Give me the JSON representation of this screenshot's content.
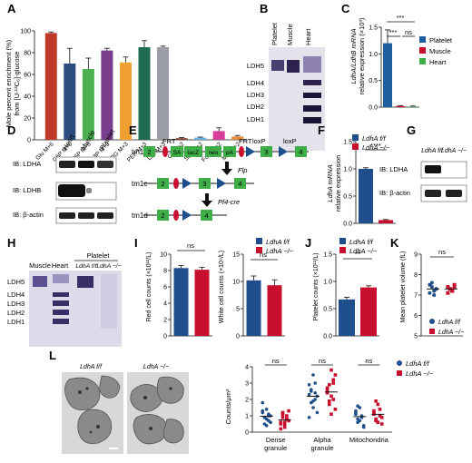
{
  "panels": {
    "A": {
      "letter": "A",
      "ylabel_1": "Mole percent enrichment (%)",
      "ylabel_2": "from [U-¹³C₆]-glucose",
      "chart_data": {
        "type": "bar",
        "categories": [
          "Glu M+6",
          "G6P M+6",
          "F6P M+6",
          "GA3P M+3",
          "3PG M+3",
          "PEP M+3",
          "Lac M+3",
          "Cit M+2",
          "Suc M+2",
          "Fum M+2",
          "Mal M+2"
        ],
        "values": [
          98,
          70,
          65,
          82,
          71,
          85,
          85,
          1.5,
          2,
          8,
          3
        ],
        "errors": [
          1,
          14,
          10,
          2,
          5,
          6,
          1,
          0.5,
          0.5,
          3,
          1
        ],
        "colors": [
          "#c0392b",
          "#2c4e7e",
          "#4caf50",
          "#7a3e8e",
          "#f0a030",
          "#1f6b4f",
          "#9a9ca6",
          "#7a3e2a",
          "#6ab0e0",
          "#d63e9a",
          "#e08a3a"
        ],
        "yticks": [
          "0",
          "20",
          "40",
          "60",
          "80",
          "100"
        ],
        "ylim": [
          0,
          100
        ]
      }
    },
    "B": {
      "letter": "B",
      "lanes": [
        "Platelet",
        "Muscle",
        "Heart"
      ],
      "bands": [
        "LDH5",
        "LDH4",
        "LDH3",
        "LDH2",
        "LDH1"
      ]
    },
    "C": {
      "letter": "C",
      "ylabel_1": "LdhA/LdhB mRNA",
      "ylabel_2": "relative expression (×10³)",
      "sig_1": "***",
      "sig_2": "***",
      "sig_3": "ns",
      "legend": [
        "Platelet",
        "Muscle",
        "Heart"
      ],
      "legend_colors": [
        "#1f5f9e",
        "#c8102e",
        "#3fae49"
      ],
      "chart_data": {
        "type": "bar",
        "categories": [
          "Platelet",
          "Muscle",
          "Heart"
        ],
        "values": [
          1.2,
          0.02,
          0.01
        ],
        "errors": [
          0.25,
          0.01,
          0.01
        ],
        "yticks": [
          "0.0",
          "0.5",
          "1.0",
          "1.5"
        ],
        "ylim": [
          0,
          1.5
        ]
      }
    },
    "D": {
      "letter": "D",
      "lanes": [
        "Heart",
        "Muscle",
        "Platelet"
      ],
      "rows": [
        "IB: LDHA",
        "IB: LDHB",
        "IB: β-actin"
      ]
    },
    "E": {
      "letter": "E",
      "alleles": [
        "tm1a",
        "tm1c",
        "tm1d"
      ],
      "labels": {
        "frt": "FRT",
        "frt2": "FRT",
        "loxp1": "loxP",
        "loxp2": "loxP",
        "sa": "SA",
        "lacz": "lacZ",
        "neo": "neo",
        "pa": "pA",
        "flp": "Flp",
        "pf4": "Pf4-cre"
      },
      "exons_a": [
        "2",
        "3",
        "4"
      ],
      "exons_c": [
        "2",
        "3",
        "4"
      ],
      "exons_d": [
        "2",
        "4"
      ]
    },
    "F": {
      "letter": "F",
      "ylabel_1": "LdhA mRNA",
      "ylabel_2": "relative expression",
      "sig": "****",
      "legend": [
        "LdhA f/f",
        "LdhA −/−"
      ],
      "chart_data": {
        "type": "bar",
        "categories": [
          "LdhA f/f",
          "LdhA −/−"
        ],
        "values": [
          1.0,
          0.06
        ],
        "errors": [
          0.02,
          0.01
        ],
        "yticks": [
          "0.0",
          "0.5",
          "1.0",
          "1.5"
        ],
        "ylim": [
          0,
          1.5
        ]
      }
    },
    "G": {
      "letter": "G",
      "lanes": [
        "LdhA f/f",
        "LdhA −/−"
      ],
      "rows": [
        "IB: LDHA",
        "IB: β-actin"
      ]
    },
    "H": {
      "letter": "H",
      "lanes": [
        "Muscle",
        "Heart",
        "LdhA f/f",
        "LdhA −/−"
      ],
      "group": "Platelet",
      "bands": [
        "LDH5",
        "LDH4",
        "LDH3",
        "LDH2",
        "LDH1"
      ]
    },
    "I": {
      "letter": "I",
      "legend": [
        "LdhA f/f",
        "LdhA −/−"
      ],
      "chart_data": [
        {
          "type": "bar",
          "ylabel": "Red cell counts (×10¹²/L)",
          "categories": [
            "LdhA f/f",
            "LdhA −/−"
          ],
          "values": [
            8.3,
            8.1
          ],
          "errors": [
            0.3,
            0.3
          ],
          "yticks": [
            "0",
            "2",
            "4",
            "6",
            "8",
            "10"
          ],
          "ylim": [
            0,
            10
          ],
          "sig": "ns"
        },
        {
          "type": "bar",
          "ylabel": "White cell counts (×10⁹/L)",
          "categories": [
            "LdhA f/f",
            "LdhA −/−"
          ],
          "values": [
            10.2,
            9.3
          ],
          "errors": [
            0.8,
            1.0
          ],
          "yticks": [
            "0",
            "5",
            "10",
            "15"
          ],
          "ylim": [
            0,
            15
          ],
          "sig": "ns"
        }
      ]
    },
    "J": {
      "letter": "J",
      "ylabel": "Platelet counts (×10¹²/L)",
      "sig": "**",
      "legend": [
        "LdhA f/f",
        "LdhA −/−"
      ],
      "chart_data": {
        "type": "bar",
        "categories": [
          "LdhA f/f",
          "LdhA −/−"
        ],
        "values": [
          0.67,
          0.89
        ],
        "errors": [
          0.04,
          0.03
        ],
        "yticks": [
          "0.0",
          "0.5",
          "1.0",
          "1.5"
        ],
        "ylim": [
          0,
          1.5
        ]
      }
    },
    "K": {
      "letter": "K",
      "ylabel": "Mean platelet volume (fL)",
      "sig": "ns",
      "legend": [
        "LdhA f/f",
        "LdhA −/−"
      ],
      "chart_data": {
        "type": "scatter",
        "categories": [
          "LdhA f/f",
          "LdhA −/−"
        ],
        "series": [
          {
            "name": "LdhA f/f",
            "values": [
              7.5,
              7.4,
              7.2,
              7.3,
              7.1,
              7.6,
              7.0,
              7.3
            ]
          },
          {
            "name": "LdhA −/−",
            "values": [
              7.4,
              7.3,
              7.2,
              7.5,
              7.1,
              7.3,
              7.2,
              7.4
            ]
          }
        ],
        "yticks": [
          "5",
          "6",
          "7",
          "8",
          "9"
        ],
        "ylim": [
          5,
          9
        ]
      }
    },
    "L": {
      "letter": "L",
      "image_labels": [
        "LdhA f/f",
        "LdhA −/−"
      ],
      "ylabel": "Counts/μm²",
      "sig": [
        "ns",
        "ns",
        "ns"
      ],
      "legend": [
        "LdhA f/f",
        "LdhA −/−"
      ],
      "chart_data": {
        "type": "scatter",
        "categories": [
          "Dense granule",
          "Alpha granule",
          "Mitochondria"
        ],
        "category_lines": [
          [
            "Dense",
            "granule"
          ],
          [
            "Alpha",
            "granule"
          ],
          [
            "Mitochondria",
            ""
          ]
        ],
        "series": [
          {
            "name": "LdhA f/f",
            "groups": [
              [
                1.2,
                0.9,
                1.4,
                0.7,
                1.0,
                1.8,
                0.5,
                0.8,
                1.1,
                0.6,
                1.3,
                0.9,
                0.4,
                1.0
              ],
              [
                2.3,
                1.8,
                3.5,
                2.0,
                1.2,
                2.9,
                2.5,
                1.5,
                3.0,
                2.2,
                0.9,
                2.6,
                1.9,
                2.4
              ],
              [
                1.2,
                0.6,
                1.5,
                0.9,
                0.4,
                1.1,
                1.6,
                0.7,
                1.0,
                0.3,
                1.3,
                0.8
              ]
            ]
          },
          {
            "name": "LdhA −/−",
            "groups": [
              [
                0.6,
                1.1,
                0.4,
                0.8,
                1.3,
                0.5,
                0.9,
                0.3,
                1.0,
                0.7,
                0.2,
                1.2,
                0.6,
                0.8
              ],
              [
                2.6,
                1.9,
                3.8,
                3.2,
                1.4,
                2.4,
                2.9,
                1.1,
                2.0,
                3.5,
                2.7,
                1.7,
                2.2,
                3.0
              ],
              [
                1.3,
                0.8,
                1.7,
                1.0,
                0.5,
                1.2,
                1.9,
                0.6,
                1.4,
                0.9,
                1.1,
                0.7
              ]
            ]
          }
        ],
        "yticks": [
          "0",
          "1",
          "2",
          "3",
          "4"
        ],
        "ylim": [
          0,
          4
        ]
      }
    }
  },
  "colors": {
    "ff": "#1f4e8c",
    "ko": "#c8102e"
  }
}
